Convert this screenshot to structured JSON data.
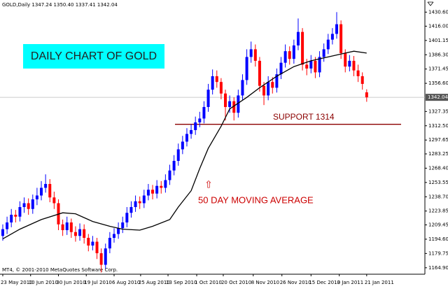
{
  "chart_data": {
    "type": "candlestick",
    "header": "GOLD,Daily  1347.24 1350.40 1337.41 1342.04",
    "footer": "MT4, © 2001-2010 MetaQuotes Software Corp.",
    "title": "DAILY CHART OF GOLD",
    "up_color": "#0000ff",
    "down_color": "#ff0000",
    "xlim": [
      -0.65,
      98.6
    ],
    "xticks": [
      {
        "value": 0,
        "label": "23 May 2010"
      },
      {
        "value": 6.5,
        "label": "10 Jun 2010"
      },
      {
        "value": 13,
        "label": "30 Jun 2010"
      },
      {
        "value": 19.5,
        "label": "19 Jul 2010"
      },
      {
        "value": 26,
        "label": "6 Aug 2010"
      },
      {
        "value": 32.2,
        "label": "25 Aug 2010"
      },
      {
        "value": 38.6,
        "label": "13 Sep 2010"
      },
      {
        "value": 45.3,
        "label": "1 Oct 2010"
      },
      {
        "value": 51.5,
        "label": "20 Oct 2010"
      },
      {
        "value": 58.5,
        "label": "8 Nov 2010"
      },
      {
        "value": 65.2,
        "label": "26 Nov 2010"
      },
      {
        "value": 72,
        "label": "15 Dec 2010"
      },
      {
        "value": 78.6,
        "label": "3 Jan 2011"
      },
      {
        "value": 85,
        "label": "21 Jan 2011"
      }
    ],
    "ylim": [
      1158.2,
      1443.2
    ],
    "yticks": [
      {
        "value": 1430.6,
        "label": "1430.60"
      },
      {
        "value": 1416,
        "label": "1416.00"
      },
      1401.15,
      {
        "value": 1386.3,
        "label": "1386.30"
      },
      1371.45,
      {
        "value": 1356.6,
        "label": "1356.60"
      },
      1327.35,
      {
        "value": 1312.5,
        "label": "1312.50"
      },
      1297.65,
      1283.25,
      {
        "value": 1268.4,
        "label": "1268.40"
      },
      1253.55,
      {
        "value": 1238.7,
        "label": "1238.70"
      },
      1223.85,
      1209.45,
      {
        "value": 1194.6,
        "label": "1194.60"
      },
      1179.75,
      {
        "value": 1164.9,
        "label": "1164.90"
      }
    ],
    "last_price": 1342.04,
    "open": [
      1198,
      1205,
      1212,
      1220,
      1218,
      1228,
      1232,
      1226,
      1236,
      1240,
      1248,
      1252,
      1238,
      1232,
      1210,
      1204,
      1212,
      1202,
      1198,
      1205,
      1196,
      1188,
      1192,
      1180,
      1168,
      1185,
      1196,
      1200,
      1206,
      1212,
      1222,
      1228,
      1234,
      1232,
      1240,
      1246,
      1242,
      1250,
      1248,
      1256,
      1266,
      1276,
      1288,
      1296,
      1304,
      1308,
      1316,
      1320,
      1332,
      1350,
      1364,
      1358,
      1346,
      1332,
      1338,
      1326,
      1344,
      1360,
      1384,
      1392,
      1380,
      1354,
      1344,
      1358,
      1352,
      1366,
      1378,
      1390,
      1382,
      1396,
      1410,
      1376,
      1372,
      1380,
      1368,
      1384,
      1392,
      1402,
      1408,
      1418,
      1388,
      1374,
      1380,
      1370,
      1364,
      1347.24
    ],
    "high": [
      1210,
      1218,
      1226,
      1225,
      1234,
      1238,
      1237,
      1241,
      1248,
      1255,
      1262,
      1257,
      1244,
      1236,
      1215,
      1218,
      1216,
      1208,
      1211,
      1210,
      1200,
      1198,
      1196,
      1185,
      1190,
      1202,
      1206,
      1212,
      1218,
      1228,
      1234,
      1240,
      1239,
      1246,
      1252,
      1251,
      1256,
      1255,
      1262,
      1272,
      1282,
      1294,
      1302,
      1310,
      1314,
      1322,
      1327,
      1338,
      1356,
      1371,
      1370,
      1362,
      1350,
      1344,
      1342,
      1350,
      1366,
      1392,
      1400,
      1397,
      1384,
      1358,
      1364,
      1363,
      1372,
      1384,
      1397,
      1395,
      1402,
      1424,
      1414,
      1382,
      1386,
      1384,
      1390,
      1398,
      1408,
      1414,
      1430.6,
      1422,
      1392,
      1386,
      1385,
      1376,
      1368,
      1350.4
    ],
    "low": [
      1193,
      1200,
      1207,
      1212,
      1213,
      1222,
      1220,
      1221,
      1230,
      1235,
      1243,
      1233,
      1226,
      1204,
      1198,
      1199,
      1196,
      1192,
      1193,
      1190,
      1182,
      1183,
      1174,
      1160,
      1164,
      1180,
      1191,
      1195,
      1201,
      1207,
      1217,
      1223,
      1226,
      1227,
      1235,
      1236,
      1237,
      1242,
      1243,
      1251,
      1261,
      1271,
      1283,
      1291,
      1299,
      1303,
      1311,
      1315,
      1327,
      1345,
      1352,
      1340,
      1318,
      1326,
      1318,
      1321,
      1339,
      1355,
      1378,
      1374,
      1348,
      1334,
      1339,
      1346,
      1347,
      1361,
      1373,
      1376,
      1377,
      1391,
      1370,
      1365,
      1367,
      1362,
      1363,
      1379,
      1387,
      1397,
      1403,
      1382,
      1368,
      1369,
      1364,
      1358,
      1350,
      1337.41
    ],
    "close": [
      1205,
      1212,
      1220,
      1218,
      1228,
      1232,
      1226,
      1236,
      1240,
      1248,
      1252,
      1238,
      1232,
      1210,
      1204,
      1212,
      1202,
      1198,
      1205,
      1196,
      1188,
      1192,
      1180,
      1168,
      1185,
      1196,
      1200,
      1206,
      1212,
      1222,
      1228,
      1234,
      1232,
      1240,
      1246,
      1242,
      1250,
      1248,
      1256,
      1266,
      1276,
      1288,
      1296,
      1304,
      1308,
      1316,
      1320,
      1332,
      1350,
      1364,
      1358,
      1346,
      1332,
      1338,
      1326,
      1344,
      1360,
      1384,
      1392,
      1380,
      1354,
      1344,
      1358,
      1352,
      1366,
      1378,
      1390,
      1382,
      1396,
      1410,
      1376,
      1372,
      1380,
      1368,
      1384,
      1392,
      1402,
      1408,
      1418,
      1388,
      1374,
      1380,
      1370,
      1364,
      1356,
      1342.04
    ],
    "moving_average": {
      "label": "50 DAY MOVING AVERAGE",
      "color": "#000000",
      "x": [
        0,
        4,
        9,
        14,
        17,
        21,
        25,
        28,
        32,
        35,
        39,
        41,
        44,
        46,
        48,
        51,
        53,
        57,
        60,
        64,
        68,
        72,
        76,
        80,
        82,
        85
      ],
      "values": [
        1195,
        1205,
        1215,
        1222,
        1221,
        1213,
        1208,
        1205,
        1204,
        1208,
        1215,
        1228,
        1245,
        1268,
        1289,
        1312,
        1330,
        1342,
        1352,
        1364,
        1374,
        1380,
        1384,
        1388,
        1390,
        1388
      ]
    },
    "support": {
      "label": "SUPPORT 1314",
      "value": 1314,
      "color": "#8b0000"
    }
  }
}
